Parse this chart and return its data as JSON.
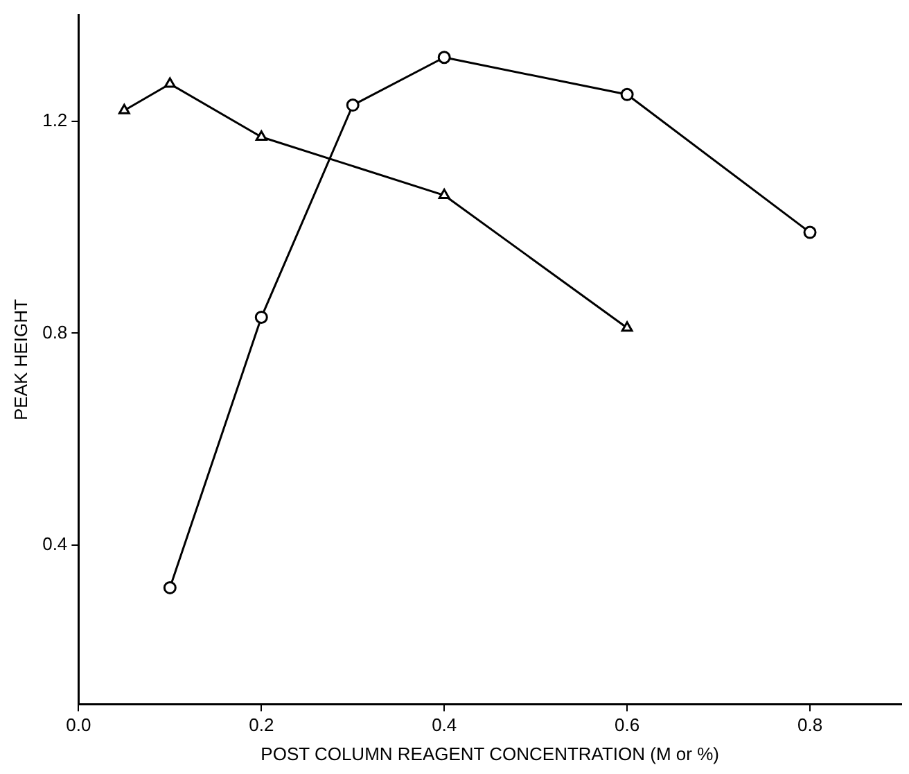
{
  "chart_data": {
    "type": "line",
    "xlabel": "POST COLUMN REAGENT CONCENTRATION (M or %)",
    "ylabel": "PEAK HEIGHT",
    "xlim": [
      0,
      0.9
    ],
    "xticks": [
      {
        "value": 0,
        "label": "0.0"
      },
      0.2,
      0.4,
      0.6,
      0.8
    ],
    "ylim": [
      0.1,
      1.4
    ],
    "yticks": [
      0.4,
      0.8,
      1.2
    ],
    "grid": false,
    "legend": false,
    "series": [
      {
        "color": "#000000",
        "marker": "triangle",
        "x": [
          0.05,
          0.1,
          0.2,
          0.4,
          0.6
        ],
        "values": [
          1.22,
          1.27,
          1.17,
          1.06,
          0.81
        ]
      },
      {
        "color": "#000000",
        "marker": "circle",
        "x": [
          0.1,
          0.2,
          0.3,
          0.4,
          0.6,
          0.8
        ],
        "values": [
          0.32,
          0.83,
          1.23,
          1.32,
          1.25,
          0.99
        ]
      }
    ]
  }
}
